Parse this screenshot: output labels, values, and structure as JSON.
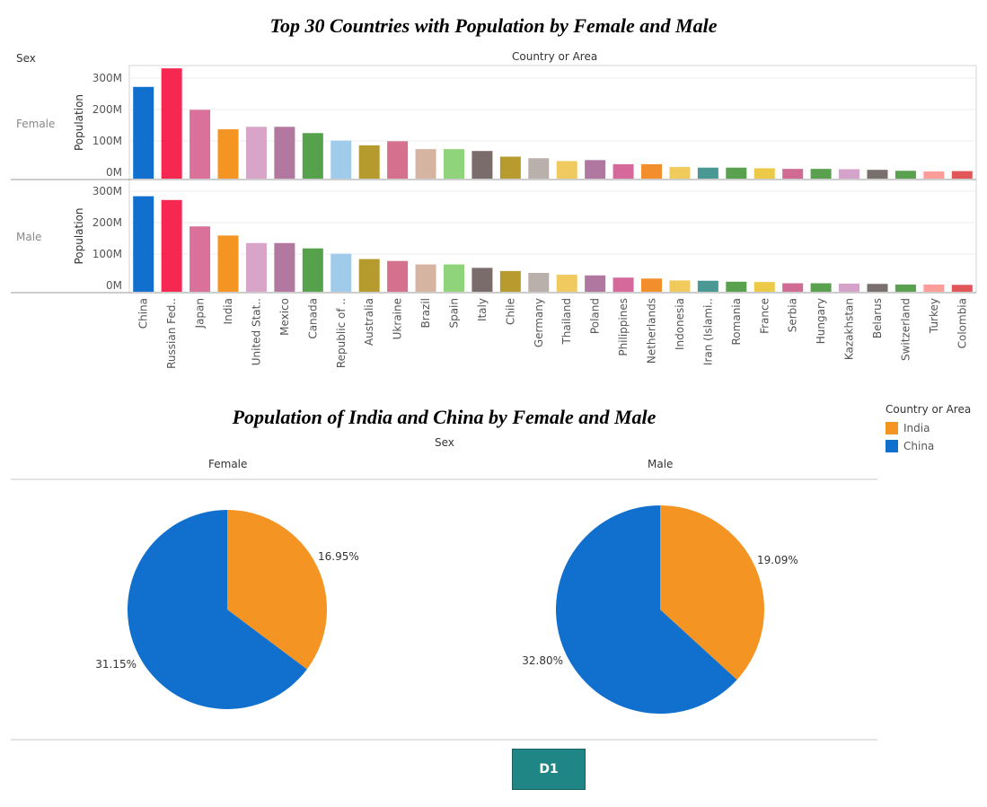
{
  "bar_chart": {
    "title": "Top 30 Countries with Population by Female and Male",
    "row_header": "Sex",
    "column_header": "Country or Area",
    "ylabel": "Population",
    "rows": [
      "Female",
      "Male"
    ],
    "yticks": [
      "0M",
      "100M",
      "200M",
      "300M"
    ]
  },
  "pie_chart": {
    "title": "Population of India and China by Female and Male",
    "header": "Sex"
  },
  "legend": {
    "title": "Country or Area",
    "items": [
      {
        "label": "India",
        "color": "#f39423"
      },
      {
        "label": "China",
        "color": "#1170cd"
      }
    ]
  },
  "button": {
    "label": "D1"
  },
  "chart_data": [
    {
      "type": "bar",
      "title": "Top 30 Countries with Population by Female and Male",
      "xlabel": "Country or Area",
      "ylabel": "Population",
      "ylim": [
        0,
        350
      ],
      "y_unit": "M",
      "categories": [
        "China",
        "Russian Fed..",
        "Japan",
        "India",
        "United Stat..",
        "Mexico",
        "Canada",
        "Republic of ..",
        "Australia",
        "Ukraine",
        "Brazil",
        "Spain",
        "Italy",
        "Chile",
        "Germany",
        "Thailand",
        "Poland",
        "Philippines",
        "Netherlands",
        "Indonesia",
        "Iran (Islami..",
        "Romania",
        "France",
        "Serbia",
        "Hungary",
        "Kazakhstan",
        "Belarus",
        "Switzerland",
        "Turkey",
        "Colombia"
      ],
      "colors": [
        "#1170cd",
        "#f62851",
        "#d9719a",
        "#f39423",
        "#d8a4c7",
        "#b278a0",
        "#56a24c",
        "#a1cbea",
        "#b59b2d",
        "#d5708f",
        "#d6b4a2",
        "#8fd47b",
        "#7a6c6a",
        "#b89b2f",
        "#bab0ab",
        "#f0ca5f",
        "#b077a0",
        "#d6699b",
        "#f28e2b",
        "#f1ca5c",
        "#499894",
        "#59a14f",
        "#edc948",
        "#d06b93",
        "#59a14f",
        "#d5a2c9",
        "#79706e",
        "#59a14f",
        "#ff9d9a",
        "#e15759"
      ],
      "series": [
        {
          "name": "Female",
          "values": [
            292,
            351,
            219,
            157,
            165,
            165,
            145,
            121,
            106,
            119,
            94,
            94,
            88,
            70,
            65,
            56,
            59,
            46,
            46,
            37,
            35,
            35,
            33,
            31,
            31,
            30,
            28,
            25,
            23,
            24
          ]
        },
        {
          "name": "Male",
          "values": [
            304,
            292,
            208,
            179,
            155,
            155,
            138,
            121,
            104,
            98,
            87,
            87,
            76,
            66,
            60,
            54,
            52,
            45,
            42,
            36,
            35,
            32,
            31,
            27,
            27,
            26,
            25,
            23,
            23,
            22
          ]
        }
      ]
    },
    {
      "type": "pie",
      "title": "Population of India and China by Female and Male",
      "facet_label": "Sex",
      "categories": [
        "India",
        "China"
      ],
      "series": [
        {
          "name": "Female",
          "values": [
            16.95,
            31.15
          ],
          "labels": [
            "16.95%",
            "31.15%"
          ]
        },
        {
          "name": "Male",
          "values": [
            19.09,
            32.8
          ],
          "labels": [
            "19.09%",
            "32.80%"
          ]
        }
      ]
    }
  ]
}
